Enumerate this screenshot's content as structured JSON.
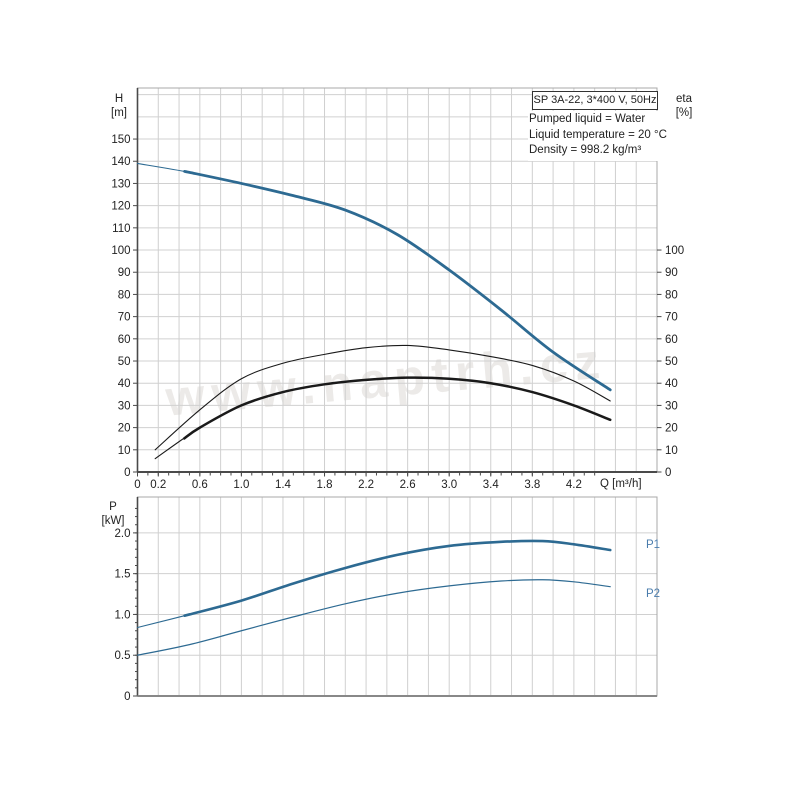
{
  "header": {
    "model_box": "SP 3A-22, 3*400 V, 50Hz",
    "info_lines": {
      "l1": "Pumped liquid = Water",
      "l2": "Liquid temperature = 20 °C",
      "l3": "Density = 998.2 kg/m³"
    }
  },
  "axes": {
    "h1": "H",
    "h2": "[m]",
    "eta1": "eta",
    "eta2": "[%]",
    "p1": "P",
    "p2": "[kW]",
    "q": "Q [m³/h]"
  },
  "curve_labels": {
    "p1": "P1",
    "p2": "P2"
  },
  "watermark": "www.naptrh.cz",
  "colors": {
    "curve_blue": "#2d6a92",
    "curve_black": "#1a1a1a",
    "label_blue": "#4a7cac",
    "grid": "#d0d0d0",
    "frame": "#a8a8a8",
    "axis": "#4a4a4a",
    "tick_text": "#222222"
  },
  "chart_data": [
    {
      "type": "line",
      "title": "SP 3A-22, 3*400 V, 50Hz",
      "xlabel": "Q [m³/h]",
      "ylabel": "H [m]",
      "ylabel_right": "eta [%]",
      "xlim": [
        0,
        5.0
      ],
      "ylim": [
        0,
        173
      ],
      "ylim_right": [
        0,
        100
      ],
      "grid": true,
      "x_grid_step": 0.2,
      "x_minor_tick_step": 0.1,
      "x_ticks": [
        {
          "v": 0,
          "label": "0"
        },
        {
          "v": 0.2,
          "label": "0.2"
        },
        {
          "v": 0.6,
          "label": "0.6"
        },
        {
          "v": 1.0,
          "label": "1.0"
        },
        {
          "v": 1.4,
          "label": "1.4"
        },
        {
          "v": 1.8,
          "label": "1.8"
        },
        {
          "v": 2.2,
          "label": "2.2"
        },
        {
          "v": 2.6,
          "label": "2.6"
        },
        {
          "v": 3.0,
          "label": "3.0"
        },
        {
          "v": 3.4,
          "label": "3.4"
        },
        {
          "v": 3.8,
          "label": "3.8"
        },
        {
          "v": 4.2,
          "label": "4.2"
        }
      ],
      "y_ticks_left": [
        0,
        10,
        20,
        30,
        40,
        50,
        60,
        70,
        80,
        90,
        100,
        110,
        120,
        130,
        140,
        150
      ],
      "y_ticks_right": [
        0,
        10,
        20,
        30,
        40,
        50,
        60,
        70,
        80,
        90,
        100
      ],
      "series": [
        {
          "name": "H",
          "color": "blue",
          "width": 2.8,
          "thin_width": 1.1,
          "thick_from": 0.47,
          "points": [
            [
              0,
              139
            ],
            [
              0.5,
              135
            ],
            [
              1.0,
              130
            ],
            [
              1.5,
              124.5
            ],
            [
              2.0,
              118
            ],
            [
              2.5,
              107
            ],
            [
              3.0,
              91
            ],
            [
              3.5,
              73
            ],
            [
              4.0,
              54
            ],
            [
              4.55,
              37
            ]
          ]
        },
        {
          "name": "eta-pump",
          "color": "black",
          "width": 1.1,
          "points": [
            [
              0.17,
              10
            ],
            [
              0.6,
              28
            ],
            [
              1.0,
              42
            ],
            [
              1.4,
              49
            ],
            [
              1.8,
              53
            ],
            [
              2.2,
              56
            ],
            [
              2.6,
              57
            ],
            [
              3.0,
              55
            ],
            [
              3.4,
              52
            ],
            [
              3.8,
              48
            ],
            [
              4.2,
              41
            ],
            [
              4.55,
              32
            ]
          ]
        },
        {
          "name": "eta-total",
          "color": "black",
          "width": 2.5,
          "thin_width": 1.1,
          "thick_from": 0.45,
          "points": [
            [
              0.17,
              6
            ],
            [
              0.6,
              20
            ],
            [
              1.0,
              30
            ],
            [
              1.4,
              36
            ],
            [
              1.8,
              39.5
            ],
            [
              2.2,
              41.5
            ],
            [
              2.6,
              42.5
            ],
            [
              3.0,
              42
            ],
            [
              3.4,
              40
            ],
            [
              3.8,
              36
            ],
            [
              4.2,
              30
            ],
            [
              4.55,
              23.5
            ]
          ]
        }
      ]
    },
    {
      "type": "line",
      "title": "",
      "xlabel": "",
      "ylabel": "P [kW]",
      "xlim": [
        0,
        5.0
      ],
      "ylim": [
        0,
        2.44
      ],
      "grid": true,
      "x_grid_step": 0.2,
      "y_minor_tick_step": 0.1,
      "y_ticks": [
        {
          "v": 0,
          "label": "0"
        },
        {
          "v": 0.5,
          "label": "0.5"
        },
        {
          "v": 1.0,
          "label": "1.0"
        },
        {
          "v": 1.5,
          "label": "1.5"
        },
        {
          "v": 2.0,
          "label": "2.0"
        }
      ],
      "series": [
        {
          "name": "P1",
          "color": "blue",
          "width": 2.6,
          "thin_width": 1.1,
          "thick_from": 0.47,
          "points": [
            [
              0,
              0.84
            ],
            [
              0.5,
              1.0
            ],
            [
              1.0,
              1.17
            ],
            [
              1.5,
              1.38
            ],
            [
              2.0,
              1.57
            ],
            [
              2.5,
              1.73
            ],
            [
              3.0,
              1.84
            ],
            [
              3.5,
              1.89
            ],
            [
              3.9,
              1.9
            ],
            [
              4.2,
              1.86
            ],
            [
              4.55,
              1.79
            ]
          ]
        },
        {
          "name": "P2",
          "color": "blue",
          "width": 1.2,
          "points": [
            [
              0,
              0.5
            ],
            [
              0.5,
              0.63
            ],
            [
              1.0,
              0.8
            ],
            [
              1.5,
              0.97
            ],
            [
              2.0,
              1.13
            ],
            [
              2.5,
              1.26
            ],
            [
              3.0,
              1.35
            ],
            [
              3.5,
              1.41
            ],
            [
              3.9,
              1.425
            ],
            [
              4.2,
              1.4
            ],
            [
              4.55,
              1.34
            ]
          ]
        }
      ]
    }
  ]
}
